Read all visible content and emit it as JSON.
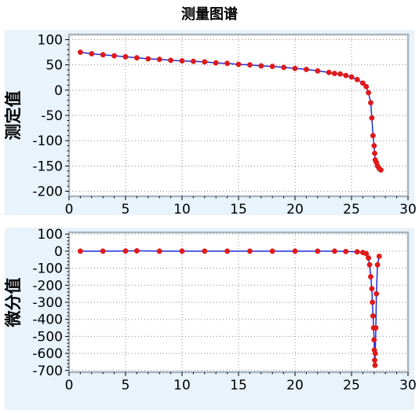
{
  "title": "测量图谱",
  "colors": {
    "panel_bg": "#e8f3fb",
    "plot_bg": "#ffffff",
    "frame": "#aab4bd",
    "point": "#e01919",
    "line": "#1f2bd8",
    "grid": "#888888"
  },
  "chart_data": [
    {
      "type": "scatter",
      "ylabel": "测定值",
      "xlim": [
        0,
        30
      ],
      "ylim": [
        -210,
        110
      ],
      "xticks": [
        "0",
        "5",
        "10",
        "15",
        "20",
        "25",
        "30"
      ],
      "yticks": [
        "100",
        "50",
        "0",
        "-50",
        "-100",
        "-150",
        "-200"
      ],
      "grid": true,
      "series": [
        {
          "x": [
            1.0,
            2.0,
            3.0,
            4.0,
            5.0,
            6.0,
            7.0,
            8.0,
            9.0,
            10.0,
            11.0,
            12.0,
            13.0,
            14.0,
            15.0,
            16.0,
            17.0,
            18.0,
            19.0,
            20.0,
            21.0,
            22.0,
            23.0,
            23.5,
            24.0,
            24.5,
            25.0,
            25.5,
            26.0,
            26.3,
            26.5,
            26.7,
            26.8,
            26.9,
            27.0,
            27.05,
            27.1,
            27.2,
            27.3,
            27.45,
            27.6
          ],
          "y": [
            75,
            72,
            70,
            68,
            66,
            64,
            62,
            61,
            59,
            58,
            57,
            56,
            54,
            53,
            51,
            50,
            48,
            47,
            45,
            43,
            41,
            38,
            35,
            33,
            32,
            29,
            26,
            21,
            14,
            7,
            -5,
            -25,
            -55,
            -90,
            -110,
            -125,
            -138,
            -143,
            -150,
            -155,
            -158
          ]
        }
      ]
    },
    {
      "type": "scatter",
      "ylabel": "微分值",
      "xlim": [
        0,
        30
      ],
      "ylim": [
        -710,
        110
      ],
      "xticks": [
        "0",
        "5",
        "10",
        "15",
        "20",
        "25",
        "30"
      ],
      "yticks": [
        "100",
        "0",
        "-100",
        "-200",
        "-300",
        "-400",
        "-500",
        "-600",
        "-700"
      ],
      "grid": true,
      "series": [
        {
          "x": [
            1.0,
            3.0,
            5.0,
            6.0,
            8.0,
            10.0,
            12.0,
            14.0,
            16.0,
            18.0,
            20.0,
            22.0,
            23.5,
            24.5,
            25.5,
            26.0,
            26.3,
            26.5,
            26.6,
            26.7,
            26.8,
            26.85,
            26.9,
            26.95,
            27.0,
            27.02,
            27.05,
            27.08,
            27.1,
            27.15,
            27.2,
            27.3,
            27.45
          ],
          "y": [
            0,
            0,
            1,
            2,
            0,
            0,
            0,
            0,
            0,
            0,
            0,
            0,
            0,
            -2,
            -4,
            -8,
            -15,
            -40,
            -80,
            -150,
            -220,
            -300,
            -380,
            -450,
            -520,
            -580,
            -640,
            -670,
            -600,
            -450,
            -250,
            -80,
            -30
          ]
        }
      ]
    }
  ]
}
